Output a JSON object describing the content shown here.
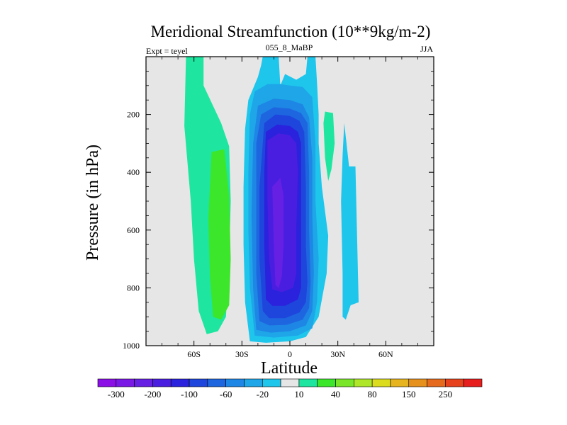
{
  "chart_data": {
    "type": "heatmap",
    "subtype": "filled-contour",
    "title": "Meridional Streamfunction (10**9kg/m-2)",
    "left_label": "Expt = teyel",
    "center_label": "055_8_MaBP",
    "right_label": "JJA",
    "xlabel": "Latitude",
    "ylabel": "Pressure (in hPa)",
    "xlim": [
      -90,
      90
    ],
    "ylim": [
      1000,
      0
    ],
    "x_ticks": [
      {
        "value": -60,
        "label": "60S"
      },
      {
        "value": -30,
        "label": "30S"
      },
      {
        "value": 0,
        "label": "0"
      },
      {
        "value": 30,
        "label": "30N"
      },
      {
        "value": 60,
        "label": "60N"
      }
    ],
    "y_ticks": [
      {
        "value": 200,
        "label": "200"
      },
      {
        "value": 400,
        "label": "400"
      },
      {
        "value": 600,
        "label": "600"
      },
      {
        "value": 800,
        "label": "800"
      },
      {
        "value": 1000,
        "label": "1000"
      }
    ],
    "background_color": "#e6e6e6",
    "colorbar": {
      "colors": [
        "#8a10e6",
        "#7a18e6",
        "#6620e4",
        "#4a1ee0",
        "#2a22dc",
        "#1e46dc",
        "#1e66e0",
        "#1e86e4",
        "#1ea6e8",
        "#1ec6ec",
        "#e6e6e6",
        "#1ee6a0",
        "#3ce62a",
        "#7ae62a",
        "#aee62a",
        "#dcdc1e",
        "#e6b41e",
        "#e6901e",
        "#e66a1e",
        "#e6421e",
        "#e61e1e"
      ],
      "labels": [
        {
          "after_index": 0,
          "text": "-300"
        },
        {
          "after_index": 2,
          "text": "-200"
        },
        {
          "after_index": 4,
          "text": "-100"
        },
        {
          "after_index": 6,
          "text": "-60"
        },
        {
          "after_index": 8,
          "text": "-20"
        },
        {
          "after_index": 10,
          "text": "10"
        },
        {
          "after_index": 12,
          "text": "40"
        },
        {
          "after_index": 14,
          "text": "80"
        },
        {
          "after_index": 16,
          "text": "150"
        },
        {
          "after_index": 18,
          "text": "250"
        }
      ]
    },
    "regions": [
      {
        "level": 10,
        "color": "#1ee6a0",
        "pts": [
          [
            -65,
            0
          ],
          [
            -54,
            0
          ],
          [
            -54,
            100
          ],
          [
            -43,
            230
          ],
          [
            -38,
            310
          ],
          [
            -37,
            500
          ],
          [
            -38,
            700
          ],
          [
            -40,
            900
          ],
          [
            -45,
            950
          ],
          [
            -52,
            960
          ],
          [
            -57,
            880
          ],
          [
            -60,
            700
          ],
          [
            -62,
            500
          ],
          [
            -66,
            240
          ]
        ]
      },
      {
        "level": 40,
        "color": "#3ce62a",
        "pts": [
          [
            -49,
            330
          ],
          [
            -41,
            320
          ],
          [
            -38,
            480
          ],
          [
            -37,
            700
          ],
          [
            -38,
            860
          ],
          [
            -43,
            910
          ],
          [
            -48,
            900
          ],
          [
            -50,
            760
          ],
          [
            -51,
            560
          ]
        ]
      },
      {
        "level": 10,
        "color": "#1ee6a0",
        "pts": [
          [
            22,
            190
          ],
          [
            27,
            195
          ],
          [
            28,
            300
          ],
          [
            26,
            390
          ],
          [
            24,
            430
          ],
          [
            22,
            350
          ],
          [
            21,
            230
          ]
        ]
      },
      {
        "level": -20,
        "color": "#1ec6ec",
        "pts": [
          [
            -20,
            70
          ],
          [
            -18,
            30
          ],
          [
            -17,
            0
          ],
          [
            -7,
            0
          ],
          [
            -6,
            100
          ],
          [
            -3,
            60
          ],
          [
            4,
            80
          ],
          [
            10,
            60
          ],
          [
            11,
            0
          ],
          [
            16,
            0
          ],
          [
            17,
            90
          ],
          [
            18,
            200
          ],
          [
            18,
            300
          ],
          [
            20,
            450
          ],
          [
            24,
            620
          ],
          [
            23,
            750
          ],
          [
            18,
            900
          ],
          [
            10,
            970
          ],
          [
            0,
            985
          ],
          [
            -15,
            990
          ],
          [
            -25,
            985
          ],
          [
            -28,
            850
          ],
          [
            -29,
            650
          ],
          [
            -29,
            450
          ],
          [
            -28,
            250
          ],
          [
            -26,
            150
          ]
        ]
      },
      {
        "level": -20,
        "color": "#1ec6ec",
        "pts": [
          [
            34,
            230
          ],
          [
            37,
            380
          ],
          [
            41,
            380
          ],
          [
            43,
            850
          ],
          [
            38,
            860
          ],
          [
            35,
            910
          ],
          [
            33,
            900
          ],
          [
            33,
            750
          ],
          [
            32,
            500
          ],
          [
            33,
            340
          ]
        ]
      },
      {
        "level": -60,
        "color": "#1ea6e8",
        "pts": [
          [
            -22,
            120
          ],
          [
            -14,
            95
          ],
          [
            -6,
            95
          ],
          [
            0,
            100
          ],
          [
            8,
            105
          ],
          [
            14,
            140
          ],
          [
            16,
            300
          ],
          [
            16,
            500
          ],
          [
            18,
            700
          ],
          [
            17,
            850
          ],
          [
            14,
            940
          ],
          [
            5,
            965
          ],
          [
            -10,
            972
          ],
          [
            -22,
            965
          ],
          [
            -25,
            800
          ],
          [
            -26,
            600
          ],
          [
            -26,
            400
          ],
          [
            -25,
            200
          ]
        ]
      },
      {
        "level": -100,
        "color": "#1e86e4",
        "pts": [
          [
            -20,
            170
          ],
          [
            -10,
            145
          ],
          [
            0,
            150
          ],
          [
            8,
            165
          ],
          [
            12,
            210
          ],
          [
            14,
            350
          ],
          [
            14,
            550
          ],
          [
            15,
            750
          ],
          [
            14,
            880
          ],
          [
            10,
            930
          ],
          [
            0,
            950
          ],
          [
            -12,
            955
          ],
          [
            -21,
            945
          ],
          [
            -23,
            800
          ],
          [
            -24,
            550
          ],
          [
            -23,
            300
          ]
        ]
      },
      {
        "level": -140,
        "color": "#1e66e0",
        "pts": [
          [
            -18,
            200
          ],
          [
            -10,
            175
          ],
          [
            0,
            180
          ],
          [
            7,
            195
          ],
          [
            11,
            230
          ],
          [
            12,
            400
          ],
          [
            12,
            600
          ],
          [
            13,
            780
          ],
          [
            12,
            870
          ],
          [
            8,
            910
          ],
          [
            -2,
            928
          ],
          [
            -13,
            930
          ],
          [
            -19,
            915
          ],
          [
            -21,
            750
          ],
          [
            -21,
            500
          ],
          [
            -21,
            300
          ]
        ]
      },
      {
        "level": -180,
        "color": "#1e46dc",
        "pts": [
          [
            -16,
            230
          ],
          [
            -9,
            200
          ],
          [
            0,
            205
          ],
          [
            6,
            222
          ],
          [
            9,
            260
          ],
          [
            10,
            450
          ],
          [
            10,
            650
          ],
          [
            11,
            780
          ],
          [
            10,
            850
          ],
          [
            6,
            885
          ],
          [
            -3,
            905
          ],
          [
            -13,
            905
          ],
          [
            -17,
            880
          ],
          [
            -19,
            700
          ],
          [
            -19,
            450
          ]
        ]
      },
      {
        "level": -220,
        "color": "#2a22dc",
        "pts": [
          [
            -15,
            260
          ],
          [
            -8,
            235
          ],
          [
            0,
            240
          ],
          [
            5,
            260
          ],
          [
            7,
            300
          ],
          [
            7,
            500
          ],
          [
            7,
            700
          ],
          [
            7,
            800
          ],
          [
            5,
            840
          ],
          [
            -3,
            862
          ],
          [
            -11,
            862
          ],
          [
            -15,
            840
          ],
          [
            -16,
            650
          ],
          [
            -16,
            400
          ]
        ]
      },
      {
        "level": -260,
        "color": "#4a1ee0",
        "pts": [
          [
            -14,
            290
          ],
          [
            -7,
            265
          ],
          [
            0,
            272
          ],
          [
            4,
            300
          ],
          [
            5,
            400
          ],
          [
            4,
            600
          ],
          [
            4,
            750
          ],
          [
            2,
            800
          ],
          [
            -5,
            815
          ],
          [
            -11,
            805
          ],
          [
            -13,
            700
          ],
          [
            -14,
            500
          ]
        ]
      },
      {
        "level": -300,
        "color": "#6620e4",
        "pts": [
          [
            -11,
            450
          ],
          [
            -6,
            420
          ],
          [
            -4,
            480
          ],
          [
            -4,
            650
          ],
          [
            -5,
            760
          ],
          [
            -7,
            800
          ],
          [
            -9,
            790
          ],
          [
            -10,
            650
          ]
        ]
      }
    ]
  }
}
